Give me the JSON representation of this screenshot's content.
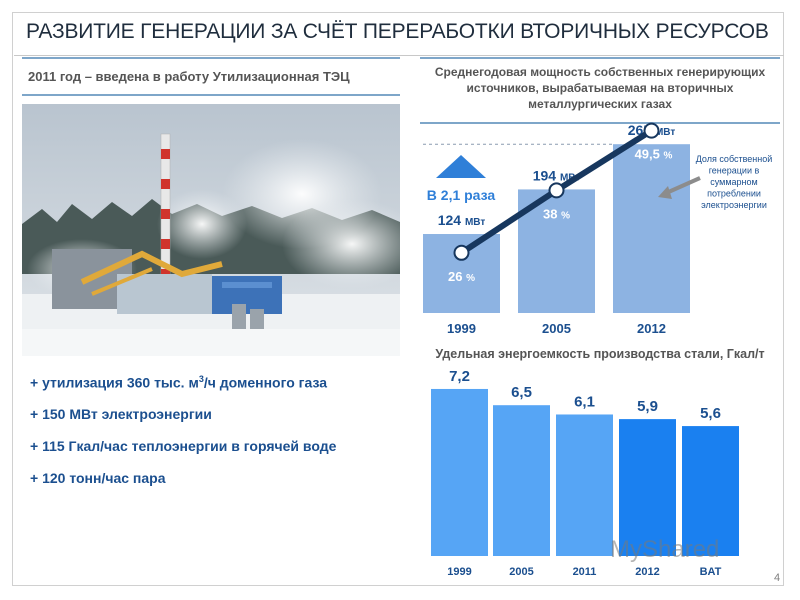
{
  "title": "РАЗВИТИЕ ГЕНЕРАЦИИ ЗА СЧЁТ ПЕРЕРАБОТКИ ВТОРИЧНЫХ РЕСУРСОВ",
  "subtitle": "2011 год – введена в работу Утилизационная ТЭЦ",
  "bullets": [
    {
      "pre": "+ утилизация 360 тыс. м",
      "sup": "3",
      "post": "/ч доменного газа"
    },
    {
      "pre": "+ 150 МВт электроэнергии",
      "sup": "",
      "post": ""
    },
    {
      "pre": "+ 115 Гкал/час теплоэнергии в горячей воде",
      "sup": "",
      "post": ""
    },
    {
      "pre": "+ 120 тонн/час пара",
      "sup": "",
      "post": ""
    }
  ],
  "page_number": "4",
  "watermark": "MyShared",
  "colors": {
    "bar_light": "#8db3e2",
    "line_dark": "#17375e",
    "rule": "#7ea6c9",
    "bar_blue_light": "#56a5f5",
    "bar_blue_dark": "#1a80f0",
    "text_blue": "#1b4f8f",
    "arrow_blue": "#4a90d9"
  },
  "chart_data": [
    {
      "type": "bar",
      "title": "Среднегодовая мощность собственных генерирующих источников, вырабатываемая на вторичных металлургических газах",
      "categories": [
        "1999",
        "2005",
        "2012"
      ],
      "values": [
        124,
        194,
        265
      ],
      "value_labels": [
        "124",
        "194",
        "265"
      ],
      "unit": "МВт",
      "growth_label": "В 2,1 раза",
      "secondary_series": {
        "type": "line",
        "values": [
          26,
          38,
          49.5
        ],
        "labels": [
          "26",
          "38",
          "49,5"
        ],
        "unit": "%",
        "annotation": "Доля собственной генерации в суммарном потреблении электроэнергии"
      }
    },
    {
      "type": "bar",
      "title": "Удельная энергоемкость производства стали, Гкал/т",
      "categories": [
        "1999",
        "2005",
        "2011",
        "2012",
        "BAT"
      ],
      "values": [
        7.2,
        6.5,
        6.1,
        5.9,
        5.6
      ],
      "value_labels": [
        "7,2",
        "6,5",
        "6,1",
        "5,9",
        "5,6"
      ]
    }
  ]
}
